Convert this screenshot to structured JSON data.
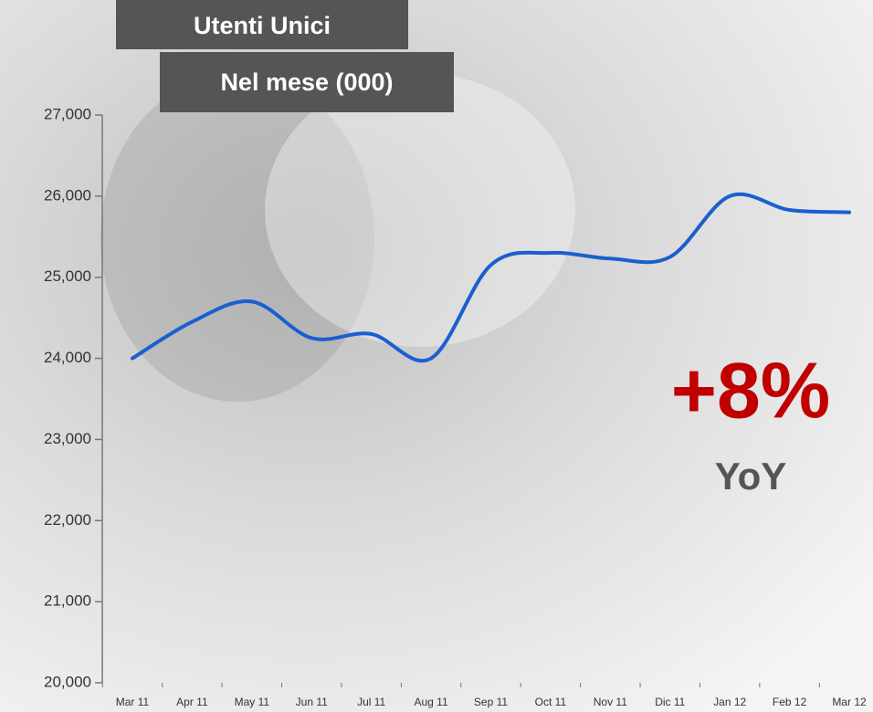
{
  "chart_data": {
    "type": "line",
    "title": "Utenti Unici",
    "subtitle": "Nel mese (000)",
    "annotations": [
      "+8%",
      "YoY"
    ],
    "categories": [
      "Mar 11",
      "Apr 11",
      "May 11",
      "Jun 11",
      "Jul 11",
      "Aug 11",
      "Sep 11",
      "Oct 11",
      "Nov 11",
      "Dic 11",
      "Jan 12",
      "Feb 12",
      "Mar 12"
    ],
    "series": [
      {
        "color": "#1a5fd0",
        "values": [
          24000,
          24450,
          24700,
          24250,
          24300,
          24000,
          25150,
          25300,
          25230,
          25250,
          26000,
          25830,
          25800
        ]
      }
    ],
    "ylim": [
      20000,
      27000
    ],
    "yticks": [
      {
        "value": 20000,
        "label": "20,000"
      },
      {
        "value": 21000,
        "label": "21,000"
      },
      {
        "value": 22000,
        "label": "22,000"
      },
      {
        "value": 23000,
        "label": "23,000"
      },
      {
        "value": 24000,
        "label": "24,000"
      },
      {
        "value": 25000,
        "label": "25,000"
      },
      {
        "value": 26000,
        "label": "26,000"
      },
      {
        "value": 27000,
        "label": "27,000"
      }
    ],
    "annotation_color": "#c00000"
  }
}
